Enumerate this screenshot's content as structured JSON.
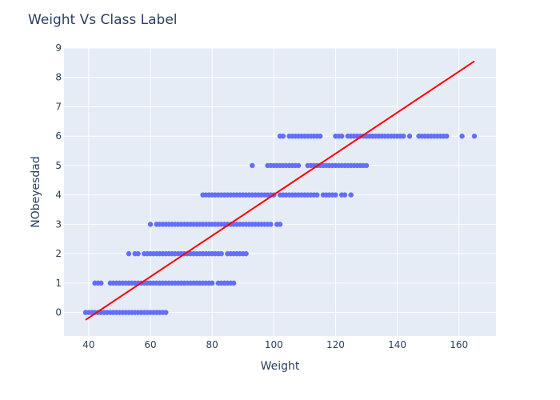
{
  "chart_data": {
    "type": "scatter",
    "title": "Weight Vs Class Label",
    "xlabel": "Weight",
    "ylabel": "NObeyesdad",
    "xlim": [
      32,
      172
    ],
    "ylim": [
      -0.8,
      9.0
    ],
    "xticks": [
      40,
      60,
      80,
      100,
      120,
      140,
      160
    ],
    "yticks": [
      0,
      1,
      2,
      3,
      4,
      5,
      6,
      7,
      8,
      9
    ],
    "grid": true,
    "legend": "none",
    "colors": {
      "plot_bg": "#e5ecf6",
      "grid": "#ffffff",
      "points": "#636efa",
      "line": "#ff0000",
      "text": "#2a3f5f"
    },
    "series": [
      {
        "type": "scatter",
        "clusters": [
          {
            "y": 0,
            "x": [
              39,
              40,
              41,
              42,
              43,
              44,
              45,
              46,
              47,
              48,
              49,
              50,
              51,
              52,
              53,
              54,
              55,
              56,
              57,
              58,
              59,
              60,
              61,
              62,
              63,
              64,
              65
            ]
          },
          {
            "y": 1,
            "x": [
              42,
              43,
              44,
              47,
              48,
              49,
              50,
              51,
              52,
              53,
              54,
              55,
              56,
              57,
              58,
              59,
              60,
              61,
              62,
              63,
              64,
              65,
              66,
              67,
              68,
              69,
              70,
              71,
              72,
              73,
              74,
              75,
              76,
              77,
              78,
              79,
              80,
              82,
              83,
              84,
              85,
              86,
              87
            ]
          },
          {
            "y": 2,
            "x": [
              53,
              55,
              56,
              58,
              59,
              60,
              61,
              62,
              63,
              64,
              65,
              66,
              67,
              68,
              69,
              70,
              71,
              72,
              73,
              74,
              75,
              76,
              77,
              78,
              79,
              80,
              81,
              82,
              83,
              85,
              86,
              87,
              88,
              89,
              90,
              91
            ]
          },
          {
            "y": 3,
            "x": [
              60,
              62,
              63,
              64,
              65,
              66,
              67,
              68,
              69,
              70,
              71,
              72,
              73,
              74,
              75,
              76,
              77,
              78,
              79,
              80,
              81,
              82,
              83,
              84,
              85,
              86,
              87,
              88,
              89,
              90,
              91,
              92,
              93,
              94,
              95,
              96,
              97,
              98,
              99,
              101,
              102
            ]
          },
          {
            "y": 4,
            "x": [
              77,
              78,
              79,
              80,
              81,
              82,
              83,
              84,
              85,
              86,
              87,
              88,
              89,
              90,
              91,
              92,
              93,
              94,
              95,
              96,
              97,
              98,
              99,
              100,
              102,
              103,
              104,
              105,
              106,
              107,
              108,
              109,
              110,
              111,
              112,
              113,
              114,
              116,
              117,
              118,
              119,
              120,
              122,
              123,
              125
            ]
          },
          {
            "y": 5,
            "x": [
              93,
              98,
              99,
              100,
              101,
              102,
              103,
              104,
              105,
              106,
              107,
              108,
              111,
              112,
              113,
              114,
              115,
              116,
              117,
              118,
              119,
              120,
              121,
              122,
              123,
              124,
              125,
              126,
              127,
              128,
              129,
              130
            ]
          },
          {
            "y": 6,
            "x": [
              102,
              103,
              105,
              106,
              107,
              108,
              109,
              110,
              111,
              112,
              113,
              114,
              115,
              120,
              121,
              122,
              124,
              125,
              126,
              127,
              128,
              129,
              130,
              131,
              132,
              133,
              134,
              135,
              136,
              137,
              138,
              139,
              140,
              141,
              142,
              144,
              147,
              148,
              149,
              150,
              151,
              152,
              153,
              154,
              155,
              156,
              161,
              165
            ]
          }
        ]
      },
      {
        "type": "line",
        "points": [
          [
            39,
            -0.25
          ],
          [
            165,
            8.55
          ]
        ]
      }
    ]
  }
}
